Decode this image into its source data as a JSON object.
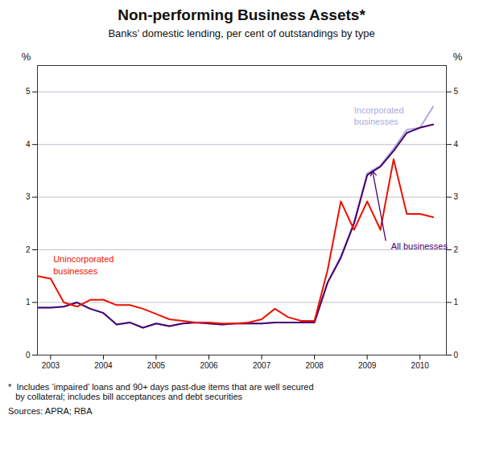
{
  "chart_data": {
    "type": "line",
    "title": "Non-performing Business Assets*",
    "subtitle": "Banks’ domestic lending, per cent of outstandings by type",
    "footnote": "*  Includes ‘impaired’ loans and 90+ days past-due items that are well secured\n   by collateral; includes bill acceptances and debt securities",
    "sources": "Sources: APRA; RBA",
    "ylabel": "%",
    "y2label": "%",
    "x": [
      2002.75,
      2003.0,
      2003.25,
      2003.5,
      2003.75,
      2004.0,
      2004.25,
      2004.5,
      2004.75,
      2005.0,
      2005.25,
      2005.5,
      2005.75,
      2006.0,
      2006.25,
      2006.5,
      2006.75,
      2007.0,
      2007.25,
      2007.5,
      2007.75,
      2008.0,
      2008.25,
      2008.5,
      2008.75,
      2009.0,
      2009.25,
      2009.5,
      2009.75,
      2010.0,
      2010.25
    ],
    "series": [
      {
        "name": "Incorporated\nbusinesses",
        "color": "#aaaadd",
        "values": [
          0.9,
          0.9,
          0.92,
          1.0,
          0.88,
          0.8,
          0.58,
          0.62,
          0.52,
          0.6,
          0.55,
          0.6,
          0.62,
          0.6,
          0.58,
          0.6,
          0.6,
          0.6,
          0.62,
          0.62,
          0.62,
          0.62,
          1.38,
          1.88,
          2.52,
          3.45,
          3.6,
          3.92,
          4.28,
          4.32,
          4.72
        ]
      },
      {
        "name": "All businesses",
        "color": "#4a006e",
        "values": [
          0.9,
          0.9,
          0.92,
          1.0,
          0.88,
          0.8,
          0.58,
          0.62,
          0.52,
          0.6,
          0.55,
          0.6,
          0.62,
          0.6,
          0.58,
          0.6,
          0.6,
          0.6,
          0.62,
          0.62,
          0.62,
          0.62,
          1.38,
          1.85,
          2.5,
          3.42,
          3.58,
          3.88,
          4.22,
          4.32,
          4.38
        ]
      },
      {
        "name": "Unincorporated\nbusinesses",
        "color": "#ee1100",
        "values": [
          1.5,
          1.45,
          1.0,
          0.92,
          1.05,
          1.05,
          0.95,
          0.95,
          0.88,
          0.78,
          0.68,
          0.65,
          0.62,
          0.62,
          0.6,
          0.6,
          0.62,
          0.68,
          0.88,
          0.72,
          0.65,
          0.65,
          1.62,
          2.92,
          2.38,
          2.92,
          2.38,
          3.72,
          2.68,
          2.68,
          2.62
        ]
      }
    ],
    "annotations": [
      {
        "text": "Unincorporated\nbusinesses",
        "x": 2003.05,
        "y": 1.72
      },
      {
        "text": "Incorporated\nbusinesses",
        "x": 2008.75,
        "y": 4.55
      },
      {
        "text": "All businesses",
        "x": 2009.45,
        "y": 2.08,
        "arrow": {
          "x1": 2009.35,
          "y1": 2.18,
          "x2": 2009.1,
          "y2": 3.5
        }
      }
    ],
    "xlim": [
      2002.75,
      2010.5
    ],
    "xticks": [
      2003,
      2004,
      2005,
      2006,
      2007,
      2008,
      2009,
      2010
    ],
    "ylim": [
      0,
      5.5
    ],
    "yticks": [
      0,
      1,
      2,
      3,
      4,
      5
    ],
    "grid": true
  }
}
